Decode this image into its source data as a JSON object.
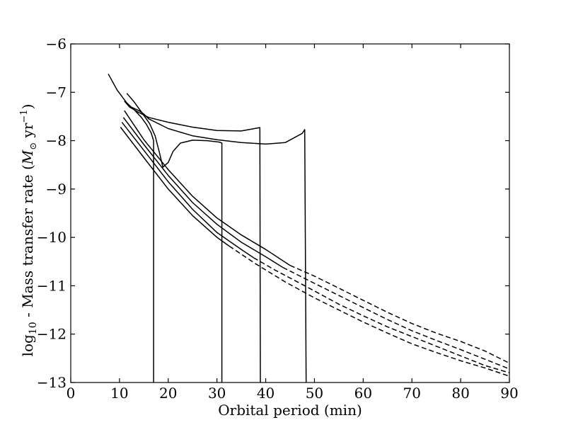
{
  "chart_data": {
    "type": "line",
    "title": "",
    "xlabel": "Orbital period (min)",
    "ylabel": {
      "prefix": "log",
      "sub": "10",
      "mid": " - Mass transfer rate (",
      "sym": "M",
      "symsub": "⊙",
      "unit": " yr",
      "sup": "−1",
      "suffix": ")"
    },
    "xlim": [
      0,
      90
    ],
    "ylim": [
      -13,
      -6
    ],
    "x_ticks": [
      0,
      10,
      20,
      30,
      40,
      50,
      60,
      70,
      80,
      90
    ],
    "y_ticks": [
      -13,
      -12,
      -11,
      -10,
      -9,
      -8,
      -7,
      -6
    ],
    "x_tick_labels": [
      "0",
      "10",
      "20",
      "30",
      "40",
      "50",
      "60",
      "70",
      "80",
      "90"
    ],
    "y_tick_labels": [
      "−13",
      "−12",
      "−11",
      "−10",
      "−9",
      "−8",
      "−7",
      "−6"
    ],
    "grid": false,
    "legend": "none",
    "series": [
      {
        "style": "solid",
        "points": [
          [
            7.7,
            -6.62
          ],
          [
            9.5,
            -6.95
          ],
          [
            11.5,
            -7.22
          ],
          [
            13,
            -7.36
          ],
          [
            14.5,
            -7.52
          ],
          [
            15.5,
            -7.66
          ],
          [
            16.5,
            -7.84
          ],
          [
            17,
            -8.0
          ],
          [
            17.0,
            -13.0
          ]
        ]
      },
      {
        "style": "solid",
        "points": [
          [
            11.5,
            -7.02
          ],
          [
            13,
            -7.2
          ],
          [
            14.8,
            -7.45
          ],
          [
            16.2,
            -7.65
          ],
          [
            17.3,
            -7.9
          ],
          [
            18.2,
            -8.25
          ],
          [
            18.9,
            -8.55
          ],
          [
            20,
            -8.45
          ],
          [
            21,
            -8.22
          ],
          [
            22.5,
            -8.05
          ],
          [
            25,
            -7.99
          ],
          [
            28,
            -8.0
          ],
          [
            30.5,
            -8.03
          ],
          [
            31.0,
            -8.05
          ],
          [
            31.0,
            -13.0
          ]
        ]
      },
      {
        "style": "solid",
        "points": [
          [
            11.0,
            -7.18
          ],
          [
            12,
            -7.3
          ],
          [
            14,
            -7.42
          ],
          [
            16,
            -7.52
          ],
          [
            20,
            -7.62
          ],
          [
            25,
            -7.72
          ],
          [
            30,
            -7.79
          ],
          [
            35,
            -7.8
          ],
          [
            38.8,
            -7.73
          ],
          [
            38.9,
            -13.0
          ]
        ]
      },
      {
        "style": "solid",
        "points": [
          [
            12.3,
            -7.3
          ],
          [
            14,
            -7.38
          ],
          [
            15,
            -7.45
          ],
          [
            16,
            -7.55
          ],
          [
            20,
            -7.75
          ],
          [
            25,
            -7.9
          ],
          [
            30,
            -7.98
          ],
          [
            35,
            -8.04
          ],
          [
            40,
            -8.07
          ],
          [
            44,
            -8.04
          ],
          [
            47.5,
            -7.85
          ],
          [
            48.0,
            -7.77
          ],
          [
            48.3,
            -13.0
          ]
        ]
      },
      {
        "style": "solid",
        "points": [
          [
            11,
            -7.38
          ],
          [
            15,
            -7.98
          ],
          [
            20,
            -8.6
          ],
          [
            25,
            -9.15
          ],
          [
            30,
            -9.6
          ],
          [
            35,
            -9.95
          ],
          [
            40,
            -10.25
          ],
          [
            45,
            -10.58
          ]
        ]
      },
      {
        "style": "dashed",
        "points": [
          [
            45,
            -10.58
          ],
          [
            50,
            -10.8
          ],
          [
            55,
            -11.05
          ],
          [
            60,
            -11.3
          ],
          [
            65,
            -11.55
          ],
          [
            70,
            -11.78
          ],
          [
            75,
            -11.98
          ],
          [
            80,
            -12.15
          ],
          [
            85,
            -12.35
          ],
          [
            90,
            -12.6
          ]
        ]
      },
      {
        "style": "solid",
        "points": [
          [
            10.8,
            -7.52
          ],
          [
            15,
            -8.08
          ],
          [
            20,
            -8.72
          ],
          [
            25,
            -9.28
          ],
          [
            30,
            -9.73
          ],
          [
            35,
            -10.1
          ],
          [
            40,
            -10.4
          ],
          [
            43.5,
            -10.62
          ]
        ]
      },
      {
        "style": "dashed",
        "points": [
          [
            43.5,
            -10.62
          ],
          [
            50,
            -10.95
          ],
          [
            55,
            -11.2
          ],
          [
            60,
            -11.45
          ],
          [
            65,
            -11.7
          ],
          [
            70,
            -11.93
          ],
          [
            75,
            -12.13
          ],
          [
            80,
            -12.32
          ],
          [
            85,
            -12.52
          ],
          [
            90,
            -12.72
          ]
        ]
      },
      {
        "style": "solid",
        "points": [
          [
            10.5,
            -7.62
          ],
          [
            15,
            -8.2
          ],
          [
            20,
            -8.85
          ],
          [
            25,
            -9.42
          ],
          [
            30,
            -9.9
          ],
          [
            35,
            -10.25
          ],
          [
            37.5,
            -10.42
          ]
        ]
      },
      {
        "style": "dashed",
        "points": [
          [
            37.5,
            -10.42
          ],
          [
            42,
            -10.68
          ],
          [
            48,
            -11.0
          ],
          [
            55,
            -11.38
          ],
          [
            60,
            -11.62
          ],
          [
            65,
            -11.85
          ],
          [
            70,
            -12.05
          ],
          [
            75,
            -12.25
          ],
          [
            80,
            -12.45
          ],
          [
            85,
            -12.65
          ],
          [
            90,
            -12.8
          ]
        ]
      },
      {
        "style": "solid",
        "points": [
          [
            10.2,
            -7.72
          ],
          [
            15,
            -8.35
          ],
          [
            20,
            -9.0
          ],
          [
            25,
            -9.55
          ],
          [
            30,
            -10.0
          ],
          [
            32.5,
            -10.18
          ]
        ]
      },
      {
        "style": "dashed",
        "points": [
          [
            32.5,
            -10.18
          ],
          [
            38,
            -10.55
          ],
          [
            44,
            -10.92
          ],
          [
            50,
            -11.25
          ],
          [
            55,
            -11.5
          ],
          [
            60,
            -11.75
          ],
          [
            65,
            -11.98
          ],
          [
            70,
            -12.2
          ],
          [
            75,
            -12.38
          ],
          [
            80,
            -12.55
          ],
          [
            85,
            -12.7
          ],
          [
            90,
            -12.87
          ]
        ]
      }
    ]
  }
}
